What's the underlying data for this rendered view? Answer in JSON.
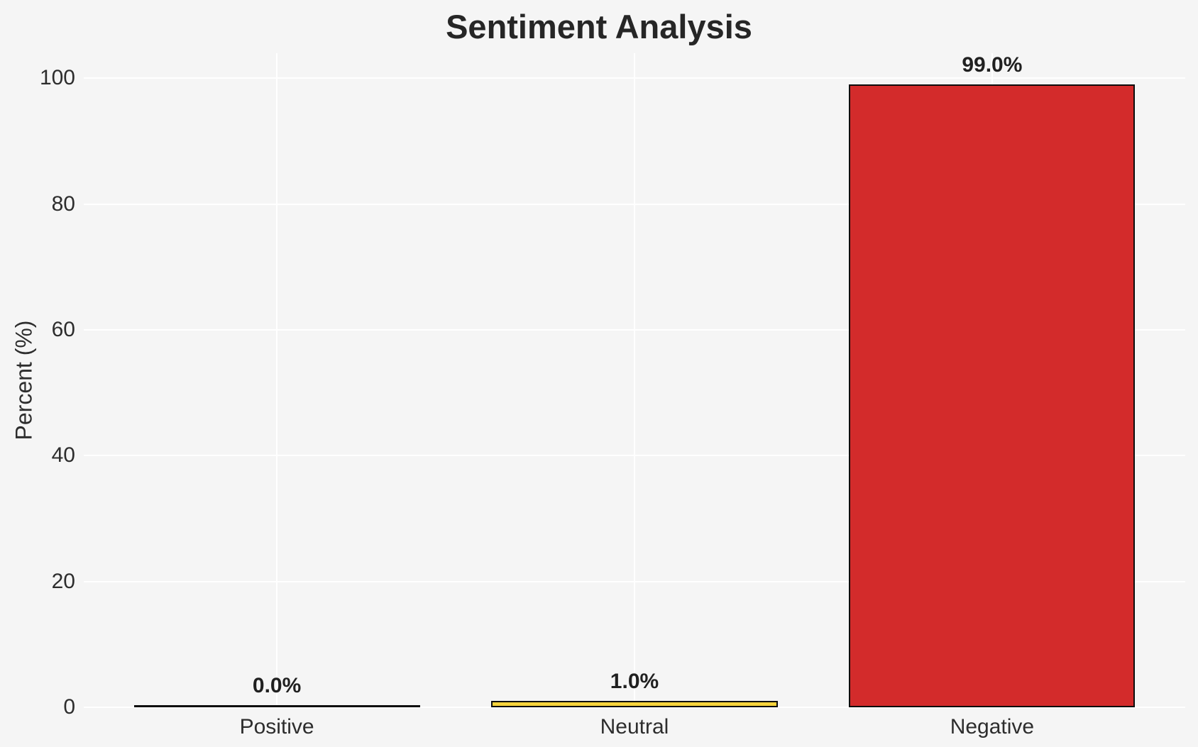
{
  "chart_data": {
    "type": "bar",
    "title": "Sentiment Analysis",
    "ylabel": "Percent (%)",
    "xlabel": "",
    "categories": [
      "Positive",
      "Neutral",
      "Negative"
    ],
    "values": [
      0.0,
      1.0,
      99.0
    ],
    "bar_labels": [
      "0.0%",
      "1.0%",
      "99.0%"
    ],
    "bar_colors": [
      "#2ca02c",
      "#f6d33c",
      "#d32b2b"
    ],
    "bar_edge_color": "#0d0d0d",
    "bar_width": 0.8,
    "yticks": [
      0,
      20,
      40,
      60,
      80,
      100
    ],
    "ylim": [
      0,
      104
    ],
    "xlim": [
      -0.54,
      2.54
    ],
    "grid": true,
    "gridline_color": "#ffffff",
    "background_color": "#f5f5f5",
    "legend_position": "none"
  }
}
